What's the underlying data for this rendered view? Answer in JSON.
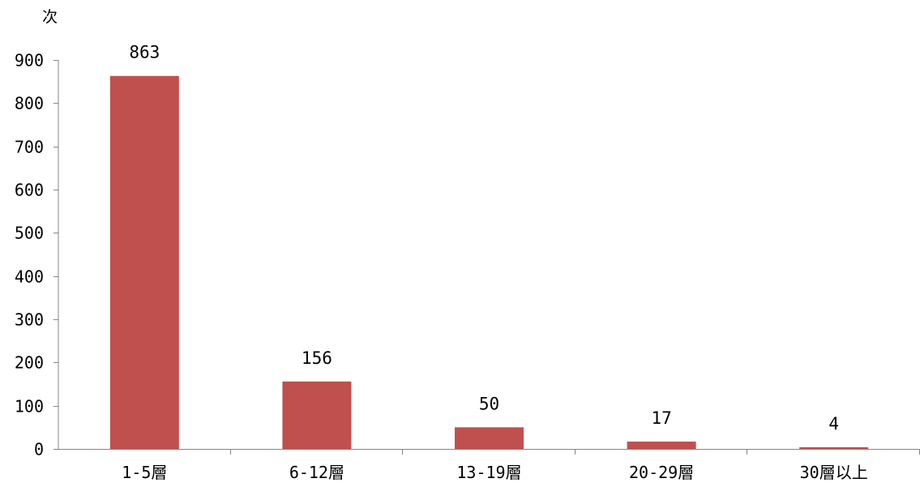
{
  "chart_data": {
    "type": "bar",
    "ylabel": "次",
    "categories": [
      "1-5層",
      "6-12層",
      "13-19層",
      "20-29層",
      "30層以上"
    ],
    "values": [
      863,
      156,
      50,
      17,
      4
    ],
    "data_labels": [
      "863",
      "156",
      "50",
      "17",
      "4"
    ],
    "ylim": [
      0,
      900
    ],
    "yticks": [
      "0",
      "100",
      "200",
      "300",
      "400",
      "500",
      "600",
      "700",
      "800",
      "900"
    ],
    "bar_color": "#c0504d",
    "grid": false,
    "legend": "none"
  }
}
